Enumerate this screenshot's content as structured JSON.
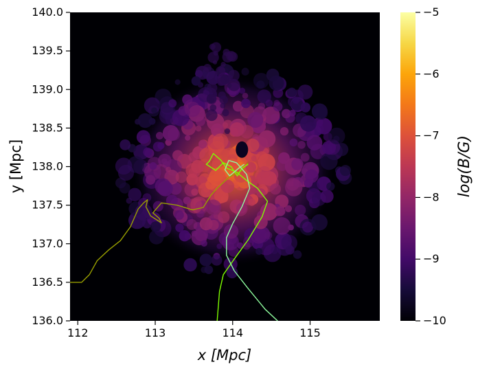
{
  "chart_data": {
    "type": "heatmap",
    "xlabel": "x [Mpc]",
    "ylabel": "y [Mpc]",
    "xlim": [
      111.9,
      115.9
    ],
    "ylim": [
      136.0,
      140.0
    ],
    "x_ticks": [
      112,
      113,
      114,
      115
    ],
    "x_tick_labels": [
      "112",
      "113",
      "114",
      "115"
    ],
    "y_ticks": [
      136.0,
      136.5,
      137.0,
      137.5,
      138.0,
      138.5,
      139.0,
      139.5,
      140.0
    ],
    "y_tick_labels": [
      "136.0",
      "136.5",
      "137.0",
      "137.5",
      "138.0",
      "138.5",
      "139.0",
      "139.5",
      "140.0"
    ],
    "colorbar": {
      "label": "log(B/G)",
      "colormap": "inferno",
      "range": [
        -10,
        -5
      ],
      "ticks": [
        -10,
        -9,
        -8,
        -7,
        -6,
        -5
      ],
      "tick_labels": [
        "−10",
        "−9",
        "−8",
        "−7",
        "−6",
        "−5"
      ]
    },
    "field_center": [
      114.0,
      137.95
    ],
    "background_color": "#000004",
    "trajectories": [
      {
        "color": "#9aa000",
        "points": [
          [
            111.9,
            136.5
          ],
          [
            112.05,
            136.5
          ],
          [
            112.15,
            136.6
          ],
          [
            112.25,
            136.78
          ],
          [
            112.4,
            136.92
          ],
          [
            112.55,
            137.04
          ],
          [
            112.68,
            137.22
          ],
          [
            112.78,
            137.45
          ],
          [
            112.85,
            137.53
          ],
          [
            112.9,
            137.57
          ],
          [
            112.88,
            137.48
          ],
          [
            112.94,
            137.36
          ],
          [
            113.02,
            137.31
          ],
          [
            113.08,
            137.27
          ],
          [
            113.05,
            137.33
          ],
          [
            112.97,
            137.4
          ],
          [
            113.08,
            137.53
          ],
          [
            113.28,
            137.5
          ],
          [
            113.48,
            137.44
          ],
          [
            113.62,
            137.47
          ],
          [
            113.72,
            137.63
          ],
          [
            113.8,
            137.72
          ],
          [
            113.95,
            137.86
          ],
          [
            114.12,
            137.95
          ],
          [
            114.2,
            138.05
          ]
        ]
      },
      {
        "color": "#7fff00",
        "points": [
          [
            113.8,
            136.0
          ],
          [
            113.83,
            136.38
          ],
          [
            113.88,
            136.6
          ],
          [
            114.02,
            136.8
          ],
          [
            114.2,
            137.05
          ],
          [
            114.38,
            137.35
          ],
          [
            114.45,
            137.55
          ],
          [
            114.32,
            137.72
          ],
          [
            114.18,
            137.82
          ],
          [
            114.05,
            137.93
          ],
          [
            113.92,
            137.98
          ],
          [
            113.85,
            138.08
          ],
          [
            113.75,
            138.17
          ],
          [
            113.7,
            138.07
          ],
          [
            113.66,
            138.03
          ],
          [
            113.78,
            137.95
          ],
          [
            113.88,
            138.05
          ],
          [
            113.98,
            138.0
          ],
          [
            114.06,
            137.88
          ],
          [
            114.12,
            137.98
          ],
          [
            114.2,
            138.03
          ]
        ]
      },
      {
        "color": "#90ffa0",
        "points": [
          [
            114.58,
            136.0
          ],
          [
            114.42,
            136.15
          ],
          [
            114.2,
            136.42
          ],
          [
            114.02,
            136.65
          ],
          [
            113.92,
            136.85
          ],
          [
            113.92,
            137.08
          ],
          [
            114.0,
            137.26
          ],
          [
            114.12,
            137.48
          ],
          [
            114.22,
            137.72
          ],
          [
            114.18,
            137.9
          ],
          [
            114.05,
            138.05
          ],
          [
            113.95,
            138.08
          ],
          [
            113.9,
            137.96
          ],
          [
            113.96,
            137.88
          ],
          [
            114.08,
            137.98
          ],
          [
            114.15,
            138.03
          ]
        ]
      }
    ]
  }
}
